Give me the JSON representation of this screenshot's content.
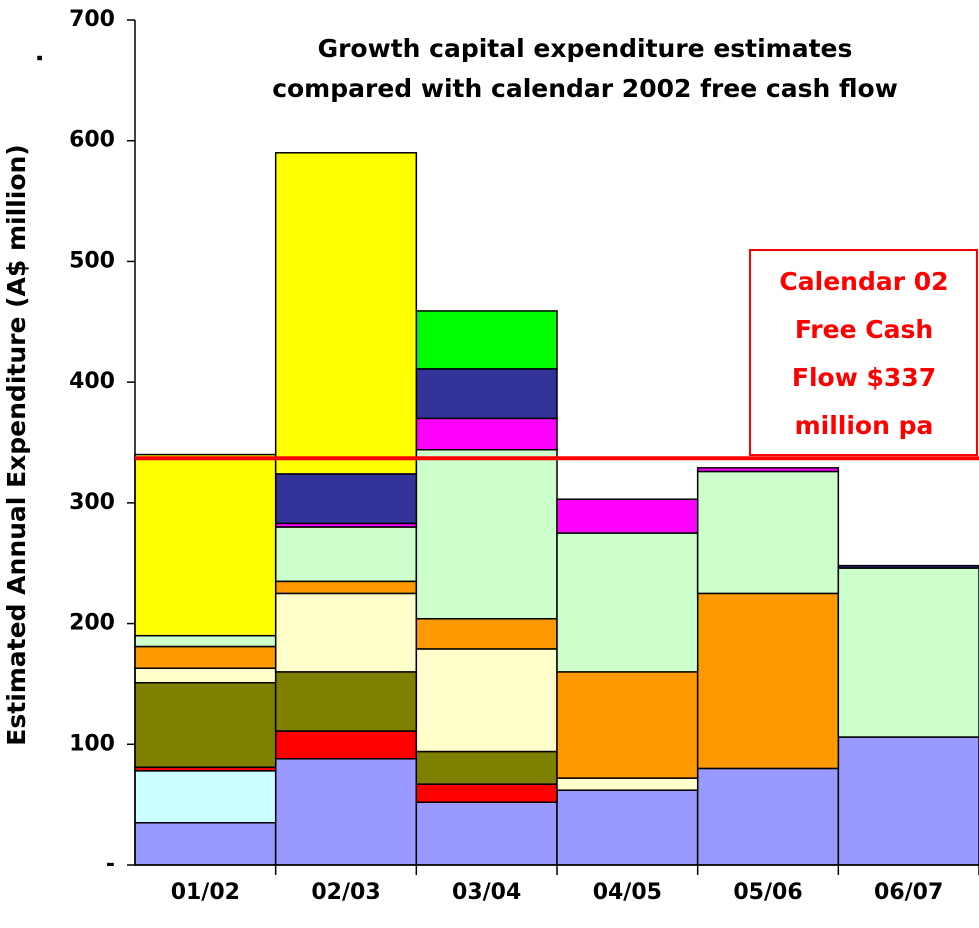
{
  "chart_data": {
    "type": "bar",
    "stacked": true,
    "title": [
      "Growth capital expenditure estimates",
      "compared with calendar 2002 free cash flow"
    ],
    "y_label": "Estimated Annual Expenditure (A$ million)",
    "y_label_mark": ".",
    "categories": [
      "01/02",
      "02/03",
      "03/04",
      "04/05",
      "05/06",
      "06/07"
    ],
    "series": [
      {
        "color": "#9999ff",
        "values": [
          35,
          88,
          52,
          62,
          80,
          106
        ]
      },
      {
        "color": "#ccffff",
        "values": [
          43,
          null,
          null,
          null,
          null,
          null
        ]
      },
      {
        "color": "#ff0000",
        "values": [
          3,
          23,
          15,
          null,
          null,
          null
        ]
      },
      {
        "color": "#808000",
        "values": [
          70,
          49,
          27,
          null,
          null,
          null
        ]
      },
      {
        "color": "#ffffcc",
        "values": [
          12,
          65,
          85,
          10,
          null,
          null
        ]
      },
      {
        "color": "#ff9900",
        "values": [
          18,
          10,
          25,
          88,
          145,
          null
        ]
      },
      {
        "color": "#ccffcc",
        "values": [
          9,
          45,
          140,
          115,
          101,
          140
        ]
      },
      {
        "color": "#ff00ff",
        "values": [
          null,
          3,
          26,
          28,
          3,
          null
        ]
      },
      {
        "color": "#333399",
        "values": [
          null,
          41,
          41,
          null,
          null,
          2
        ]
      },
      {
        "color": "#00ff00",
        "values": [
          null,
          null,
          48,
          null,
          null,
          null
        ]
      },
      {
        "color": "#ffff00",
        "values": [
          150,
          266,
          null,
          null,
          null,
          null
        ]
      }
    ],
    "ylim": [
      0,
      700
    ],
    "yticks": [
      {
        "value": 0,
        "label": "-"
      },
      100,
      200,
      300,
      400,
      500,
      600,
      700
    ],
    "hline": 337,
    "hline_color": "#ff0000",
    "annotation": [
      "Calendar 02",
      "Free Cash",
      "Flow $337",
      "million pa"
    ]
  }
}
